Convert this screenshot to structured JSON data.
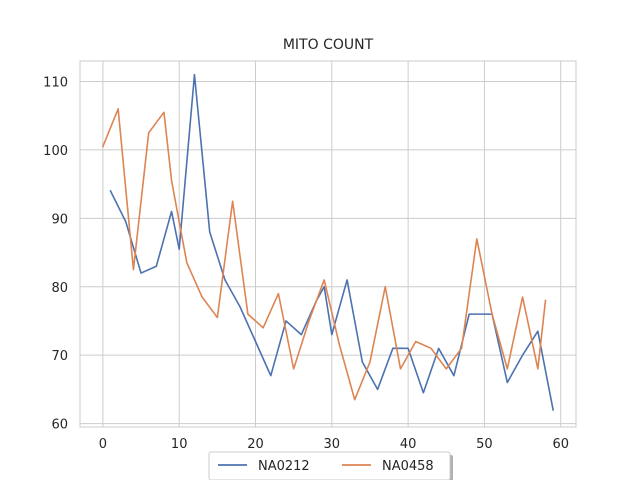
{
  "chart_data": {
    "type": "line",
    "title": "MITO COUNT",
    "xlabel": "",
    "ylabel": "",
    "xlim": [
      -3,
      62
    ],
    "ylim": [
      59.5,
      113
    ],
    "xticks": [
      0,
      10,
      20,
      30,
      40,
      50,
      60
    ],
    "yticks": [
      60,
      70,
      80,
      90,
      100,
      110
    ],
    "grid": true,
    "legend_position": "bottom-center",
    "series": [
      {
        "name": "NA0212",
        "color": "#4c72b0",
        "x": [
          1,
          3,
          5,
          7,
          9,
          10,
          12,
          14,
          16,
          18,
          20,
          22,
          24,
          26,
          28,
          29,
          30,
          32,
          34,
          36,
          38,
          40,
          42,
          44,
          46,
          48,
          50,
          51,
          53,
          55,
          57,
          59
        ],
        "y": [
          94,
          89.5,
          82,
          83,
          91,
          85.5,
          111,
          88,
          81,
          77,
          72,
          67,
          75,
          73,
          78,
          80,
          73,
          81,
          69,
          65,
          71,
          71,
          64.5,
          71,
          67,
          76,
          76,
          76,
          66,
          70,
          73.5,
          62
        ]
      },
      {
        "name": "NA0458",
        "color": "#dd8452",
        "x": [
          0,
          2,
          4,
          6,
          8,
          9,
          11,
          13,
          15,
          17,
          19,
          21,
          23,
          25,
          27,
          29,
          31,
          33,
          35,
          37,
          39,
          41,
          43,
          45,
          47,
          49,
          51,
          53,
          55,
          57,
          58
        ],
        "y": [
          100.5,
          106,
          82.5,
          102.5,
          105.5,
          95.5,
          83.5,
          78.5,
          75.5,
          92.5,
          76,
          74,
          79,
          68,
          75,
          81,
          71.5,
          63.5,
          69,
          80,
          68,
          72,
          71,
          68,
          71,
          87,
          76,
          68,
          78.5,
          68,
          78
        ]
      }
    ]
  }
}
